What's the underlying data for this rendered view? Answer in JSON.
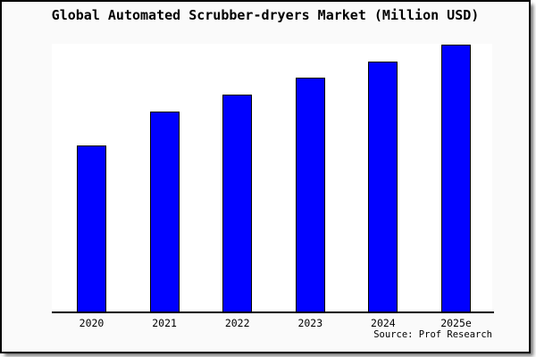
{
  "title": "Global Automated Scrubber-dryers Market (Million USD)",
  "source": "Source: Prof Research",
  "colors": {
    "bar_fill": "#0000ff",
    "bar_border": "#000000",
    "figure_background": "#fafafa",
    "plot_background": "#ffffff",
    "axis_line": "#000000",
    "frame_border": "#000000"
  },
  "chart_data": {
    "type": "bar",
    "title": "Global Automated Scrubber-dryers Market (Million USD)",
    "categories": [
      "2020",
      "2021",
      "2022",
      "2023",
      "2024",
      "2025e"
    ],
    "values": [
      62.5,
      75.1,
      81.4,
      87.7,
      93.7,
      100
    ],
    "units": "relative index, 2025e = 100 (y-axis has no tick labels in figure)",
    "xlabel": "",
    "ylabel": "",
    "ylim": [
      0,
      100
    ],
    "grid": false,
    "legend": "none",
    "y_axis_shown": false,
    "annotations": [
      "Source: Prof Research"
    ]
  }
}
